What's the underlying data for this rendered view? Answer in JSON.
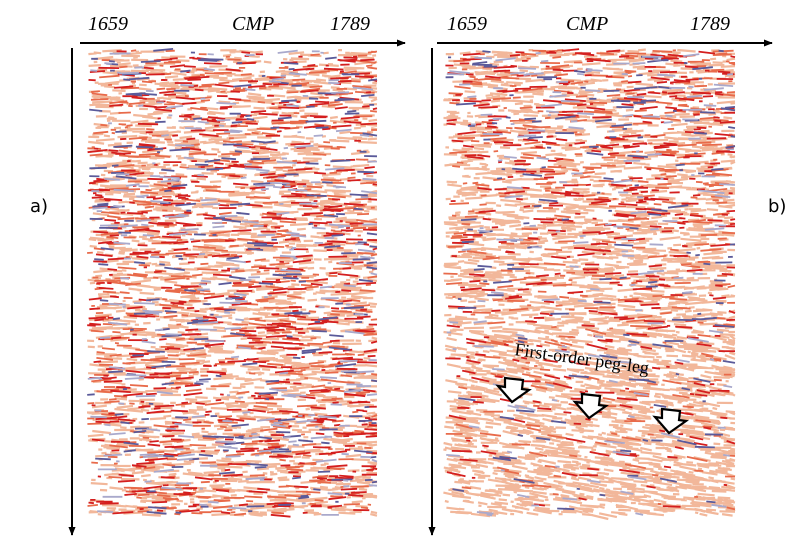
{
  "panels": [
    {
      "label": "a)",
      "axis": {
        "start": "1659",
        "title": "CMP",
        "end": "1789"
      }
    },
    {
      "label": "b)",
      "axis": {
        "start": "1659",
        "title": "CMP",
        "end": "1789"
      },
      "annotation": "First-order peg-leg"
    }
  ]
}
